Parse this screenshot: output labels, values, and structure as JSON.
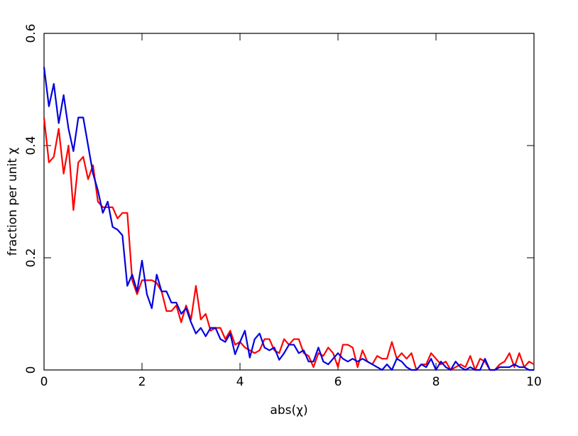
{
  "chart_data": {
    "type": "line",
    "xlabel": "abs(χ)",
    "ylabel": "fraction per unit χ",
    "xlim": [
      0,
      10
    ],
    "ylim": [
      0,
      0.6
    ],
    "xticks": [
      0,
      2,
      4,
      6,
      8,
      10
    ],
    "yticks": [
      0,
      0.2,
      0.4,
      0.6
    ],
    "x": [
      0,
      0.1,
      0.2,
      0.3,
      0.4,
      0.5,
      0.6,
      0.7,
      0.8,
      0.9,
      1,
      1.1,
      1.2,
      1.3,
      1.4,
      1.5,
      1.6,
      1.7,
      1.8,
      1.9,
      2,
      2.1,
      2.2,
      2.3,
      2.4,
      2.5,
      2.6,
      2.7,
      2.8,
      2.9,
      3,
      3.1,
      3.2,
      3.3,
      3.4,
      3.5,
      3.6,
      3.7,
      3.8,
      3.9,
      4,
      4.1,
      4.2,
      4.3,
      4.4,
      4.5,
      4.6,
      4.7,
      4.8,
      4.9,
      5,
      5.1,
      5.2,
      5.3,
      5.4,
      5.5,
      5.6,
      5.7,
      5.8,
      5.9,
      6,
      6.1,
      6.2,
      6.3,
      6.4,
      6.5,
      6.6,
      6.7,
      6.8,
      6.9,
      7,
      7.1,
      7.2,
      7.3,
      7.4,
      7.5,
      7.6,
      7.7,
      7.8,
      7.9,
      8,
      8.1,
      8.2,
      8.3,
      8.4,
      8.5,
      8.6,
      8.7,
      8.8,
      8.9,
      9,
      9.1,
      9.2,
      9.3,
      9.4,
      9.5,
      9.6,
      9.7,
      9.8,
      9.9,
      10
    ],
    "series": [
      {
        "color": "#ff0000",
        "values": [
          0.45,
          0.37,
          0.38,
          0.43,
          0.35,
          0.4,
          0.285,
          0.37,
          0.38,
          0.34,
          0.365,
          0.3,
          0.29,
          0.29,
          0.29,
          0.27,
          0.28,
          0.28,
          0.16,
          0.135,
          0.16,
          0.16,
          0.16,
          0.155,
          0.14,
          0.105,
          0.105,
          0.115,
          0.085,
          0.115,
          0.09,
          0.15,
          0.09,
          0.1,
          0.07,
          0.075,
          0.075,
          0.055,
          0.07,
          0.045,
          0.05,
          0.04,
          0.035,
          0.03,
          0.035,
          0.055,
          0.055,
          0.035,
          0.03,
          0.055,
          0.045,
          0.055,
          0.055,
          0.03,
          0.025,
          0.005,
          0.03,
          0.025,
          0.04,
          0.03,
          0.005,
          0.045,
          0.045,
          0.04,
          0.005,
          0.035,
          0.015,
          0.01,
          0.025,
          0.02,
          0.02,
          0.05,
          0.02,
          0.03,
          0.02,
          0.03,
          0,
          0.01,
          0.01,
          0.03,
          0.02,
          0.01,
          0.015,
          0,
          0.005,
          0.01,
          0.005,
          0.025,
          0,
          0.02,
          0.015,
          0,
          0,
          0.01,
          0.015,
          0.03,
          0.005,
          0.03,
          0.005,
          0.015,
          0.01
        ]
      },
      {
        "color": "#0000e0",
        "values": [
          0.54,
          0.47,
          0.51,
          0.44,
          0.49,
          0.43,
          0.39,
          0.45,
          0.45,
          0.4,
          0.35,
          0.32,
          0.28,
          0.3,
          0.255,
          0.25,
          0.24,
          0.15,
          0.17,
          0.14,
          0.195,
          0.135,
          0.11,
          0.17,
          0.14,
          0.14,
          0.12,
          0.12,
          0.1,
          0.11,
          0.085,
          0.065,
          0.075,
          0.06,
          0.075,
          0.075,
          0.055,
          0.05,
          0.065,
          0.028,
          0.05,
          0.07,
          0.022,
          0.055,
          0.065,
          0.04,
          0.035,
          0.04,
          0.018,
          0.03,
          0.045,
          0.045,
          0.03,
          0.035,
          0.015,
          0.015,
          0.04,
          0.015,
          0.01,
          0.02,
          0.03,
          0.02,
          0.015,
          0.02,
          0.015,
          0.02,
          0.015,
          0.01,
          0.005,
          0,
          0.01,
          0,
          0.02,
          0.015,
          0.005,
          0,
          0,
          0.01,
          0.005,
          0.02,
          0,
          0.015,
          0.005,
          0,
          0.015,
          0.005,
          0,
          0.005,
          0,
          0,
          0.02,
          0,
          0,
          0.005,
          0.005,
          0.005,
          0.01,
          0.005,
          0.005,
          0,
          0
        ]
      }
    ]
  }
}
